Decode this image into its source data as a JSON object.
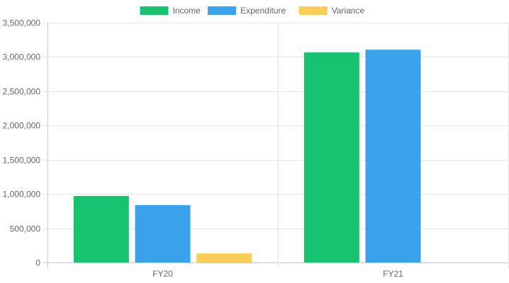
{
  "chart_data": {
    "type": "bar",
    "categories": [
      "FY20",
      "FY21"
    ],
    "series": [
      {
        "name": "Income",
        "color": "#17c271",
        "values": [
          970000,
          3065000
        ]
      },
      {
        "name": "Expenditure",
        "color": "#38a2eb",
        "values": [
          838000,
          3105000
        ]
      },
      {
        "name": "Variance",
        "color": "#ffcd56",
        "values": [
          132000,
          0
        ]
      }
    ],
    "ylim": [
      0,
      3500000
    ],
    "yticks": [
      "0",
      "500,000",
      "1,000,000",
      "1,500,000",
      "2,000,000",
      "2,500,000",
      "3,000,000",
      "3,500,000"
    ],
    "ytick_values": [
      0,
      500000,
      1000000,
      1500000,
      2000000,
      2500000,
      3000000,
      3500000
    ],
    "grid": true,
    "legend_position": "top-center",
    "title": "",
    "xlabel": "",
    "ylabel": ""
  }
}
